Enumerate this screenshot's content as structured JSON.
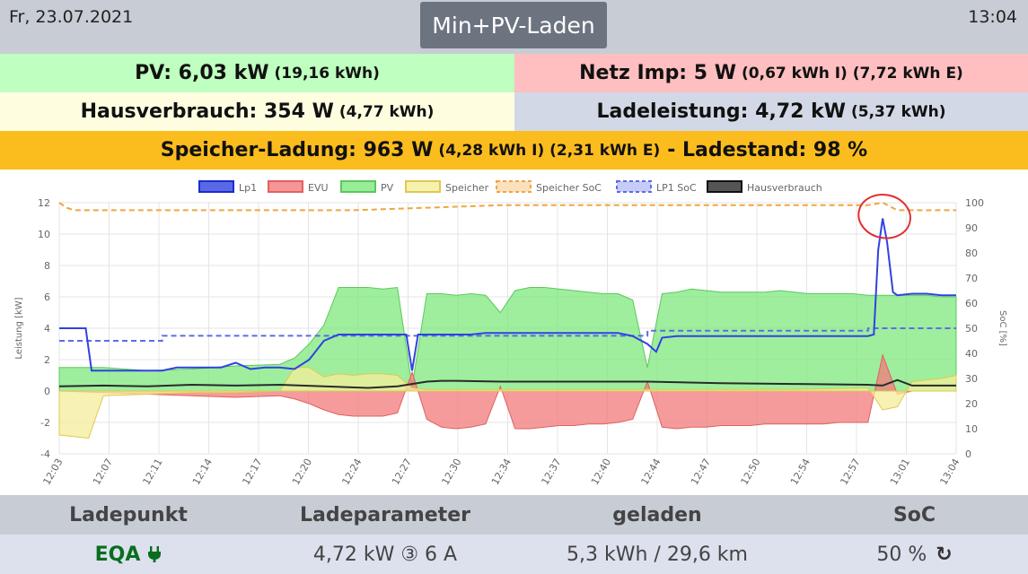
{
  "header": {
    "date": "Fr, 23.07.2021",
    "time": "13:04",
    "mode_button": "Min+PV-Laden"
  },
  "summary": {
    "pv_main": "PV: 6,03 kW",
    "pv_small": "(19,16 kWh)",
    "netz_main": "Netz Imp: 5 W",
    "netz_small": "(0,67 kWh I) (7,72 kWh E)",
    "haus_main": "Hausverbrauch: 354 W",
    "haus_small": "(4,77 kWh)",
    "lade_main": "Ladeleistung: 4,72 kW",
    "lade_small": "(5,37 kWh)",
    "speicher_main": "Speicher-Ladung: 963 W",
    "speicher_small": "(4,28 kWh I) (2,31 kWh E)",
    "speicher_rest": "- Ladestand: 98 %"
  },
  "colors": {
    "pv_bg": "#bfffbf",
    "netz_bg": "#ffbfc0",
    "haus_bg": "#fffde0",
    "lade_bg": "#d3d8e6",
    "speicher_bg": "#fbbc1e",
    "lp1": "#2f43e0",
    "evu": "#f27a7a",
    "pv": "#7ee87e",
    "speicher": "#f4ee9a",
    "speicher_soc": "#f0a640",
    "lp1_soc": "#5c6ce6",
    "hausverbrauch": "#2a2a2a",
    "annotation": "#e03030"
  },
  "chart_data": {
    "type": "area",
    "legend": [
      "Lp1",
      "EVU",
      "PV",
      "Speicher",
      "Speicher SoC",
      "LP1 SoC",
      "Hausverbrauch"
    ],
    "legend_position": "top",
    "ylabel": "Leistung [kW]",
    "y2label": "SoC [%]",
    "ylim": [
      -4,
      12
    ],
    "y2lim": [
      0,
      100
    ],
    "yticks": [
      "12",
      "10",
      "8",
      "6",
      "4",
      "2",
      "0",
      "-2",
      "-4"
    ],
    "y2ticks": [
      "100",
      "90",
      "80",
      "70",
      "60",
      "50",
      "40",
      "30",
      "20",
      "10",
      "0"
    ],
    "xticks": [
      "12:03",
      "12:07",
      "12:11",
      "12:14",
      "12:17",
      "12:20",
      "12:24",
      "12:27",
      "12:30",
      "12:34",
      "12:37",
      "12:40",
      "12:44",
      "12:47",
      "12:50",
      "12:54",
      "12:57",
      "13:01",
      "13:04"
    ],
    "xlim_minutes": [
      0,
      61
    ],
    "series": [
      {
        "name": "PV",
        "x": [
          0,
          3,
          6,
          9,
          12,
          15,
          16,
          17,
          18,
          19,
          20,
          21,
          22,
          23,
          24,
          25,
          26,
          27,
          28,
          29,
          30,
          31,
          32,
          33,
          34,
          35,
          36,
          37,
          38,
          39,
          40,
          41,
          42,
          43,
          44,
          45,
          46,
          47,
          48,
          49,
          50,
          51,
          52,
          53,
          54,
          55,
          56,
          57,
          58,
          59,
          60,
          61
        ],
        "y": [
          1.5,
          1.5,
          1.3,
          1.4,
          1.6,
          1.7,
          2.1,
          3.0,
          4.2,
          6.6,
          6.6,
          6.6,
          6.5,
          6.6,
          0.3,
          6.2,
          6.2,
          6.1,
          6.2,
          6.1,
          5.0,
          6.4,
          6.6,
          6.6,
          6.5,
          6.4,
          6.3,
          6.2,
          6.2,
          5.8,
          1.5,
          6.2,
          6.3,
          6.5,
          6.4,
          6.3,
          6.3,
          6.3,
          6.3,
          6.4,
          6.3,
          6.2,
          6.2,
          6.2,
          6.2,
          6.1,
          6.1,
          6.1,
          6.1,
          6.1,
          6.0,
          6.0
        ]
      },
      {
        "name": "EVU",
        "x": [
          0,
          3,
          6,
          9,
          12,
          15,
          16,
          17,
          18,
          19,
          20,
          21,
          22,
          23,
          24,
          25,
          26,
          27,
          28,
          29,
          30,
          31,
          32,
          33,
          34,
          35,
          36,
          37,
          38,
          39,
          40,
          41,
          42,
          43,
          44,
          45,
          46,
          47,
          48,
          49,
          50,
          51,
          52,
          53,
          54,
          55,
          56,
          57,
          58,
          59,
          60,
          61
        ],
        "y": [
          0.0,
          -0.1,
          -0.2,
          -0.3,
          -0.4,
          -0.3,
          -0.5,
          -0.8,
          -1.2,
          -1.5,
          -1.6,
          -1.6,
          -1.6,
          -1.4,
          1.2,
          -1.8,
          -2.3,
          -2.4,
          -2.3,
          -2.1,
          0.3,
          -2.4,
          -2.4,
          -2.3,
          -2.2,
          -2.2,
          -2.1,
          -2.1,
          -2.0,
          -1.8,
          0.6,
          -2.3,
          -2.4,
          -2.3,
          -2.3,
          -2.2,
          -2.2,
          -2.2,
          -2.1,
          -2.1,
          -2.1,
          -2.1,
          -2.1,
          -2.0,
          -2.0,
          -2.0,
          2.3,
          -0.2,
          0.0,
          0.0,
          0.0,
          0.0
        ]
      },
      {
        "name": "Speicher",
        "x": [
          0,
          1,
          2,
          3,
          6,
          9,
          12,
          15,
          16,
          17,
          18,
          19,
          20,
          21,
          22,
          23,
          24,
          25,
          26,
          30,
          40,
          50,
          55,
          56,
          57,
          58,
          59,
          60,
          61
        ],
        "y": [
          -2.8,
          -2.9,
          -3.0,
          -0.3,
          -0.2,
          -0.1,
          -0.1,
          0.0,
          1.5,
          1.5,
          0.9,
          1.1,
          1.0,
          1.1,
          1.1,
          1.0,
          0.2,
          0.1,
          0.1,
          0.1,
          0.1,
          0.1,
          0.2,
          -1.2,
          -1.0,
          0.6,
          0.7,
          0.8,
          1.0
        ]
      },
      {
        "name": "Lp1",
        "x": [
          0,
          1,
          1.8,
          2.2,
          4,
          7,
          8,
          9,
          10,
          11,
          12,
          13,
          14,
          15,
          16,
          17,
          18,
          19,
          20,
          21,
          22,
          23,
          23.6,
          24,
          24.4,
          25,
          26,
          27,
          28,
          29,
          30,
          31,
          32,
          33,
          34,
          35,
          36,
          37,
          38,
          39,
          40,
          40.6,
          41,
          42,
          45,
          50,
          54,
          55,
          55.4,
          55.7,
          56,
          56.3,
          56.7,
          57,
          58,
          59,
          60,
          61
        ],
        "y": [
          4.0,
          4.0,
          4.0,
          1.3,
          1.3,
          1.3,
          1.5,
          1.5,
          1.5,
          1.5,
          1.8,
          1.4,
          1.5,
          1.5,
          1.4,
          2.0,
          3.2,
          3.6,
          3.6,
          3.6,
          3.6,
          3.6,
          3.6,
          1.3,
          3.6,
          3.6,
          3.6,
          3.6,
          3.6,
          3.7,
          3.7,
          3.7,
          3.7,
          3.7,
          3.7,
          3.7,
          3.7,
          3.7,
          3.7,
          3.5,
          3.0,
          2.5,
          3.4,
          3.5,
          3.5,
          3.5,
          3.5,
          3.5,
          3.6,
          9.0,
          11.0,
          9.5,
          6.3,
          6.1,
          6.2,
          6.2,
          6.1,
          6.1
        ]
      },
      {
        "name": "Hausverbrauch",
        "x": [
          0,
          3,
          6,
          9,
          12,
          15,
          18,
          21,
          22,
          23,
          24,
          25,
          26,
          27,
          30,
          35,
          40,
          45,
          50,
          55,
          56,
          57,
          58,
          61
        ],
        "y": [
          0.3,
          0.35,
          0.3,
          0.4,
          0.35,
          0.4,
          0.3,
          0.2,
          0.25,
          0.3,
          0.45,
          0.6,
          0.65,
          0.65,
          0.6,
          0.6,
          0.6,
          0.5,
          0.45,
          0.4,
          0.35,
          0.7,
          0.35,
          0.35
        ]
      },
      {
        "name": "Speicher SoC",
        "x": [
          0,
          0.5,
          1,
          10,
          20,
          25,
          30,
          40,
          50,
          55,
          56,
          57,
          61
        ],
        "y": [
          100,
          98,
          97,
          97,
          97,
          98,
          99,
          99,
          99,
          99,
          100,
          97,
          97
        ]
      },
      {
        "name": "LP1 SoC",
        "x": [
          0,
          7,
          7.01,
          40,
          40.01,
          55,
          55.01,
          61
        ],
        "y": [
          45,
          45,
          47,
          47,
          49,
          49,
          50,
          50
        ]
      }
    ]
  },
  "footer": {
    "headers": [
      "Ladepunkt",
      "Ladeparameter",
      "geladen",
      "SoC"
    ],
    "ladepunkt": "EQA",
    "ladeparameter": "4,72 kW ③ 6 A",
    "geladen": "5,3 kWh / 29,6 km",
    "soc": "50 %"
  }
}
